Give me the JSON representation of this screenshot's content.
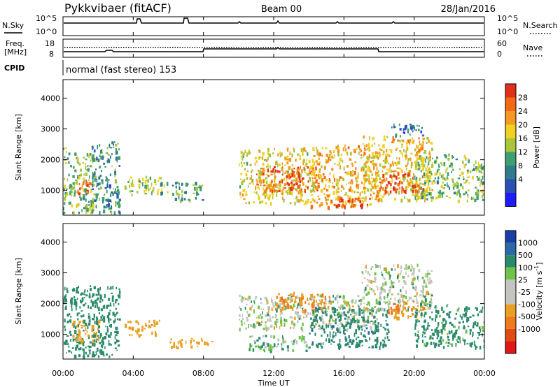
{
  "header": {
    "radar": "Pykkvibaer (fitACF)",
    "beam": "Beam 00",
    "date": "28/Jan/2016"
  },
  "status_panels": {
    "nsky_label": "N.Sky",
    "nsky_ticks": [
      "10^5",
      "10^0"
    ],
    "nsearch_label": "N.Search",
    "nsearch_ticks": [
      "10^5",
      "10^0"
    ],
    "freq_label_line1": "Freq.",
    "freq_label_line2": "[MHz]",
    "freq_ticks": [
      "18",
      "8"
    ],
    "nave_label": "Nave",
    "nave_ticks": [
      "60",
      "0"
    ],
    "cpid_label": "CPID",
    "cpid_text": "normal (fast stereo) 153"
  },
  "x_axis": {
    "ticks": [
      "00:00",
      "04:00",
      "08:00",
      "12:00",
      "16:00",
      "20:00",
      "00:00"
    ],
    "label": "Time UT"
  },
  "colors": {
    "frame": "#000000",
    "power_scale": [
      "#1c1cff",
      "#2a4fb5",
      "#2f7d8c",
      "#3ea070",
      "#a9c63a",
      "#f0d020",
      "#f59a20",
      "#f36a12",
      "#e0301a"
    ],
    "velocity_scale": [
      "#1b3ea6",
      "#2b6aa8",
      "#2a8a6a",
      "#6fc24a",
      "#c4c4c0",
      "#c4c4c0",
      "#e8a020",
      "#ee7a1a",
      "#e24a14",
      "#e01818"
    ]
  },
  "chart_data": [
    {
      "type": "heatmap",
      "panel": "power",
      "ylabel": "Slant Range [km]",
      "yticks": [
        "1000",
        "2000",
        "3000",
        "4000"
      ],
      "ylim": [
        200,
        4600
      ],
      "xlim_hours": [
        0,
        24
      ],
      "colorbar_label": "Power [dB]",
      "colorbar_ticks": [
        "4",
        "8",
        "12",
        "16",
        "20",
        "24",
        "28"
      ],
      "clim": [
        0,
        30
      ],
      "regions": [
        {
          "t0": 0.0,
          "t1": 1.8,
          "r0": 300,
          "r1": 2400,
          "value": 14
        },
        {
          "t0": 0.8,
          "t1": 1.6,
          "r0": 800,
          "r1": 1300,
          "value": 26
        },
        {
          "t0": 1.6,
          "t1": 3.2,
          "r0": 300,
          "r1": 2600,
          "value": 10
        },
        {
          "t0": 3.5,
          "t1": 6.0,
          "r0": 900,
          "r1": 1500,
          "value": 14
        },
        {
          "t0": 6.2,
          "t1": 8.0,
          "r0": 700,
          "r1": 1300,
          "value": 11
        },
        {
          "t0": 10.0,
          "t1": 14.0,
          "r0": 600,
          "r1": 2400,
          "value": 18
        },
        {
          "t0": 11.0,
          "t1": 14.5,
          "r0": 1000,
          "r1": 1800,
          "value": 26
        },
        {
          "t0": 14.0,
          "t1": 18.0,
          "r0": 500,
          "r1": 2500,
          "value": 20
        },
        {
          "t0": 15.5,
          "t1": 17.5,
          "r0": 500,
          "r1": 800,
          "value": 28
        },
        {
          "t0": 17.0,
          "t1": 21.0,
          "r0": 700,
          "r1": 2800,
          "value": 19
        },
        {
          "t0": 18.0,
          "t1": 20.5,
          "r0": 1000,
          "r1": 1600,
          "value": 27
        },
        {
          "t0": 20.0,
          "t1": 24.0,
          "r0": 700,
          "r1": 2200,
          "value": 14
        },
        {
          "t0": 18.5,
          "t1": 20.5,
          "r0": 2800,
          "r1": 3200,
          "value": 8
        }
      ]
    },
    {
      "type": "heatmap",
      "panel": "velocity",
      "ylabel": "Slant Range [km]",
      "yticks": [
        "1000",
        "2000",
        "3000",
        "4000"
      ],
      "ylim": [
        200,
        4600
      ],
      "xlim_hours": [
        0,
        24
      ],
      "colorbar_label": "Velocity [m s^-1]",
      "colorbar_ticks": [
        "1000",
        "500",
        "100",
        "25",
        "-25",
        "-100",
        "-500",
        "-1000"
      ],
      "regions": [
        {
          "t0": 0.0,
          "t1": 3.2,
          "r0": 300,
          "r1": 2600,
          "value": 300
        },
        {
          "t0": 0.5,
          "t1": 2.0,
          "r0": 800,
          "r1": 1500,
          "value": -300
        },
        {
          "t0": 3.5,
          "t1": 5.5,
          "r0": 1000,
          "r1": 1500,
          "value": -400
        },
        {
          "t0": 6.0,
          "t1": 8.5,
          "r0": 600,
          "r1": 900,
          "value": -300
        },
        {
          "t0": 10.0,
          "t1": 18.0,
          "r0": 1200,
          "r1": 2300,
          "value": 0
        },
        {
          "t0": 10.5,
          "t1": 14.0,
          "r0": 500,
          "r1": 1000,
          "value": 80
        },
        {
          "t0": 12.0,
          "t1": 15.0,
          "r0": 1800,
          "r1": 2400,
          "value": -500
        },
        {
          "t0": 14.0,
          "t1": 18.5,
          "r0": 600,
          "r1": 1900,
          "value": 400
        },
        {
          "t0": 17.0,
          "t1": 21.0,
          "r0": 1800,
          "r1": 3300,
          "value": 0
        },
        {
          "t0": 18.5,
          "t1": 20.5,
          "r0": 1500,
          "r1": 2100,
          "value": -500
        },
        {
          "t0": 20.0,
          "t1": 24.0,
          "r0": 600,
          "r1": 2000,
          "value": 200
        }
      ]
    }
  ]
}
